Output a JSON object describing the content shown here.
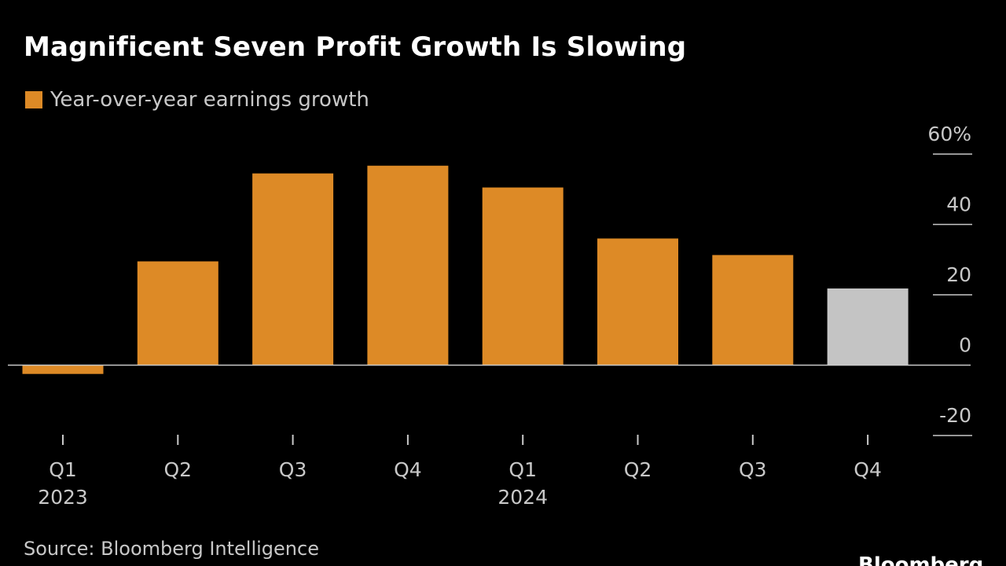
{
  "colors": {
    "background": "#000000",
    "bar": "#DD8A26",
    "estimate_bar": "#C4C4C4",
    "axis_line": "#C8C8C8",
    "text": "#C8C8C8",
    "title": "#FFFFFF"
  },
  "footer": {
    "source": "Source: Bloomberg Intelligence",
    "brand": "Bloomberg"
  },
  "chart_data": {
    "type": "bar",
    "title": "Magnificent Seven Profit Growth Is Slowing",
    "legend": [
      "Year-over-year earnings growth"
    ],
    "legend_position": "top-left",
    "categories": [
      "Q1",
      "Q2",
      "Q3",
      "Q4",
      "Q1",
      "Q2",
      "Q3",
      "Q4"
    ],
    "category_year_labels": [
      "2023",
      "",
      "",
      "",
      "2024",
      "",
      "",
      ""
    ],
    "series": [
      {
        "name": "Year-over-year earnings growth",
        "values": [
          -2.5,
          29.5,
          54.5,
          56.7,
          50.5,
          36,
          31.3,
          21.8
        ]
      }
    ],
    "estimate_indices": [
      7
    ],
    "ylim": [
      -20,
      60
    ],
    "y_ticks": [
      -20,
      0,
      20,
      40,
      60
    ],
    "y_tick_labels": [
      "-20",
      "0",
      "20",
      "40",
      "60%"
    ],
    "y_axis_position": "right",
    "xlabel": "",
    "ylabel": "",
    "grid": false
  }
}
